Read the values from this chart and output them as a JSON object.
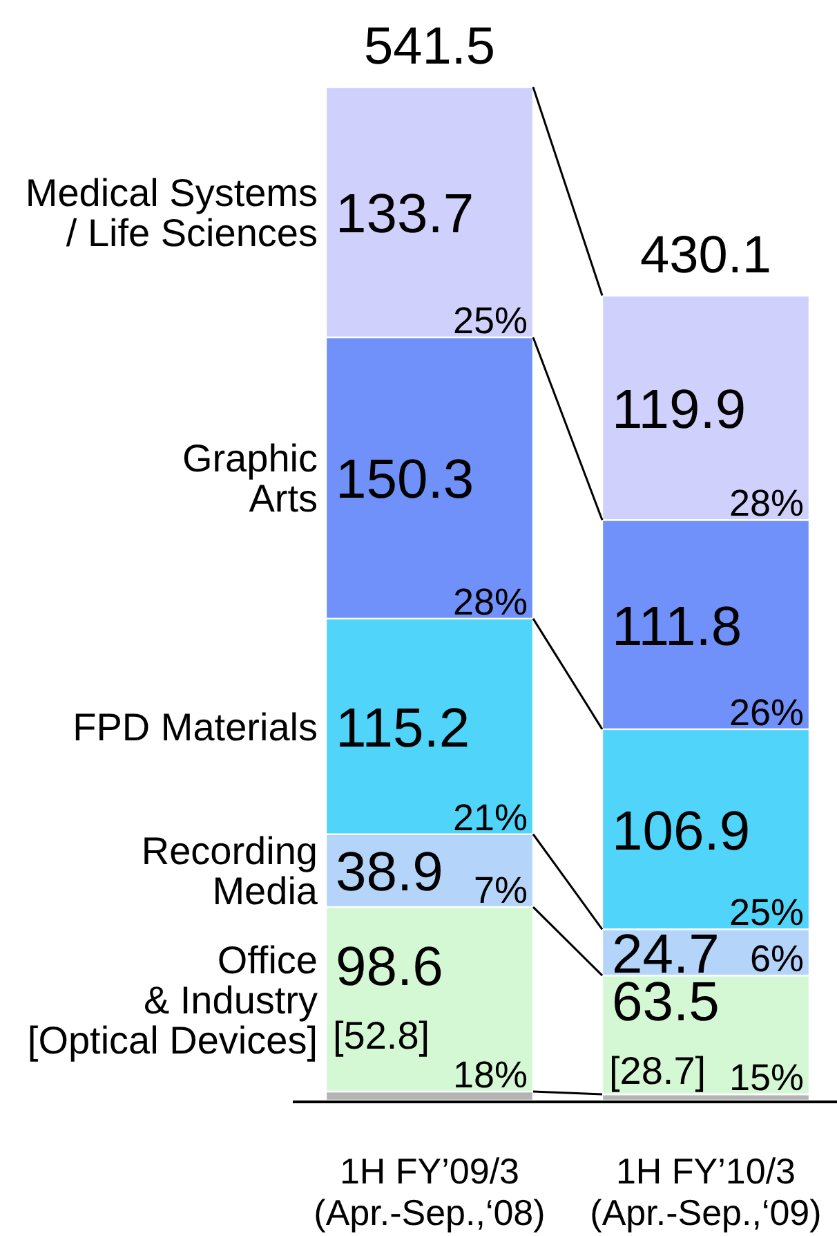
{
  "chart_data": {
    "type": "bar",
    "stacked": true,
    "categories": [
      "1H FY’09/3\n(Apr.-Sep.,‘08)",
      "1H FY’10/3\n(Apr.-Sep.,‘09)"
    ],
    "series": [
      {
        "color": "#b4b4b4",
        "values": [
          4.8,
          3.3
        ],
        "value_labels": [
          null,
          null
        ]
      },
      {
        "name": "Office\n& Industry\n[Optical Devices]",
        "color": "#d4f8d4",
        "values": [
          98.6,
          63.5
        ],
        "value_labels": [
          "98.6\n[52.8]",
          "63.5\n[28.7]"
        ]
      },
      {
        "name": "Recording\nMedia",
        "color": "#b4d4fa",
        "values": [
          38.9,
          24.7
        ],
        "value_labels": [
          "38.9",
          "24.7"
        ]
      },
      {
        "name": "FPD Materials",
        "color": "#50d4fa",
        "values": [
          115.2,
          106.9
        ],
        "value_labels": [
          "115.2",
          "106.9"
        ]
      },
      {
        "name": "Graphic\nArts",
        "color": "#7090fa",
        "values": [
          150.3,
          111.8
        ],
        "value_labels": [
          "150.3",
          "111.8"
        ]
      },
      {
        "name": "Medical Systems\n/ Life Sciences",
        "color": "#d0d0fc",
        "values": [
          133.7,
          119.9
        ],
        "value_labels": [
          "133.7",
          "119.9"
        ]
      }
    ],
    "totals": [
      "541.5",
      "430.1"
    ],
    "annotations": [
      {
        "text": "25%",
        "x": "1H FY’09/3\n(Apr.-Sep.,‘08)",
        "y": 407.8
      },
      {
        "text": "28%",
        "x": "1H FY’09/3\n(Apr.-Sep.,‘08)",
        "y": 257.5
      },
      {
        "text": "21%",
        "x": "1H FY’09/3\n(Apr.-Sep.,‘08)",
        "y": 142.3
      },
      {
        "text": "7%",
        "x": "1H FY’09/3\n(Apr.-Sep.,‘08)",
        "y": 103.4
      },
      {
        "text": "18%",
        "x": "1H FY’09/3\n(Apr.-Sep.,‘08)",
        "y": 4.8
      },
      {
        "text": "28%",
        "x": "1H FY’10/3\n(Apr.-Sep.,‘09)",
        "y": 310.2
      },
      {
        "text": "26%",
        "x": "1H FY’10/3\n(Apr.-Sep.,‘09)",
        "y": 198.4
      },
      {
        "text": "25%",
        "x": "1H FY’10/3\n(Apr.-Sep.,‘09)",
        "y": 91.5
      },
      {
        "text": "6%",
        "x": "1H FY’10/3\n(Apr.-Sep.,‘09)",
        "y": 66.8
      },
      {
        "text": "15%",
        "x": "1H FY’10/3\n(Apr.-Sep.,‘09)",
        "y": 3.3
      }
    ]
  }
}
